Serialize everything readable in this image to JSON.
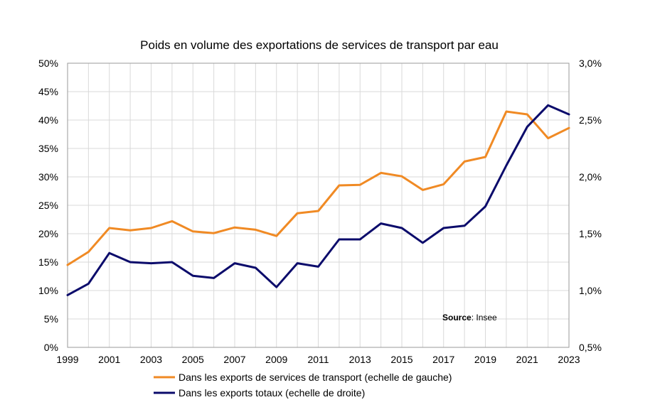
{
  "chart_data": {
    "type": "line",
    "title": "Poids en volume des exportations de services de transport par eau",
    "x": [
      1999,
      2000,
      2001,
      2002,
      2003,
      2004,
      2005,
      2006,
      2007,
      2008,
      2009,
      2010,
      2011,
      2012,
      2013,
      2014,
      2015,
      2016,
      2017,
      2018,
      2019,
      2020,
      2021,
      2022,
      2023
    ],
    "x_tick_labels": [
      "1999",
      "2001",
      "2003",
      "2005",
      "2007",
      "2009",
      "2011",
      "2013",
      "2015",
      "2017",
      "2019",
      "2021",
      "2023"
    ],
    "x_tick_values": [
      1999,
      2001,
      2003,
      2005,
      2007,
      2009,
      2011,
      2013,
      2015,
      2017,
      2019,
      2021,
      2023
    ],
    "y_left": {
      "lim": [
        0,
        50
      ],
      "ticks": [
        0,
        5,
        10,
        15,
        20,
        25,
        30,
        35,
        40,
        45,
        50
      ],
      "tick_labels": [
        "0%",
        "5%",
        "10%",
        "15%",
        "20%",
        "25%",
        "30%",
        "35%",
        "40%",
        "45%",
        "50%"
      ]
    },
    "y_right": {
      "lim": [
        0.5,
        3.0
      ],
      "ticks": [
        0.5,
        1.0,
        1.5,
        2.0,
        2.5,
        3.0
      ],
      "tick_labels": [
        "0,5%",
        "1,0%",
        "1,5%",
        "2,0%",
        "2,5%",
        "3,0%"
      ]
    },
    "grid": true,
    "legend_position": "bottom",
    "series": [
      {
        "name": "Dans les exports de services de transport (echelle de gauche)",
        "axis": "left",
        "color": "#F08A24",
        "values": [
          14.5,
          16.8,
          21.0,
          20.6,
          21.0,
          22.2,
          20.4,
          20.1,
          21.1,
          20.7,
          19.6,
          23.6,
          24.0,
          28.5,
          28.6,
          30.7,
          30.1,
          27.7,
          28.7,
          32.7,
          33.5,
          41.5,
          41.0,
          36.8,
          38.6
        ]
      },
      {
        "name": "Dans les exports totaux (echelle de droite)",
        "axis": "right",
        "color": "#0B0B6B",
        "values": [
          0.96,
          1.06,
          1.33,
          1.25,
          1.24,
          1.25,
          1.13,
          1.11,
          1.24,
          1.2,
          1.03,
          1.24,
          1.21,
          1.45,
          1.45,
          1.59,
          1.55,
          1.42,
          1.55,
          1.57,
          1.74,
          2.1,
          2.44,
          2.63,
          2.55
        ]
      }
    ],
    "annotation": {
      "bold": "Source",
      "text": ": Insee"
    }
  }
}
